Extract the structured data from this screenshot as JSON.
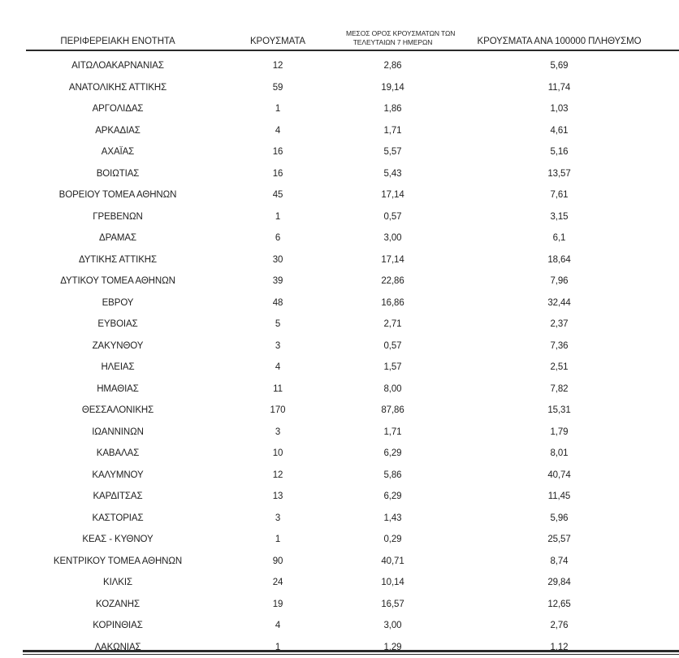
{
  "page": {
    "background": "#ffffff",
    "text_color": "#1f1f1f",
    "rule_color": "#2a2a2a"
  },
  "table": {
    "headers": {
      "region": "ΠΕΡΙΦΕΡΕΙΑΚΗ ΕΝΟΤΗΤΑ",
      "cases": "ΚΡΟΥΣΜΑΤΑ",
      "avg7_line1": "ΜΕΣΟΣ ΟΡΟΣ ΚΡΟΥΣΜΑΤΩΝ ΤΩΝ",
      "avg7_line2": "ΤΕΛΕΥΤΑΙΩΝ 7 ΗΜΕΡΩΝ",
      "per100k": "ΚΡΟΥΣΜΑΤΑ ΑΝΑ 100000 ΠΛΗΘΥΣΜΟ"
    },
    "rows": [
      {
        "region": "ΑΙΤΩΛΟΑΚΑΡΝΑΝΙΑΣ",
        "cases": "12",
        "avg7": "2,86",
        "per100k": "5,69"
      },
      {
        "region": "ΑΝΑΤΟΛΙΚΗΣ ΑΤΤΙΚΗΣ",
        "cases": "59",
        "avg7": "19,14",
        "per100k": "11,74"
      },
      {
        "region": "ΑΡΓΟΛΙΔΑΣ",
        "cases": "1",
        "avg7": "1,86",
        "per100k": "1,03"
      },
      {
        "region": "ΑΡΚΑΔΙΑΣ",
        "cases": "4",
        "avg7": "1,71",
        "per100k": "4,61"
      },
      {
        "region": "ΑΧΑΪΑΣ",
        "cases": "16",
        "avg7": "5,57",
        "per100k": "5,16"
      },
      {
        "region": "ΒΟΙΩΤΙΑΣ",
        "cases": "16",
        "avg7": "5,43",
        "per100k": "13,57"
      },
      {
        "region": "ΒΟΡΕΙΟΥ ΤΟΜΕΑ ΑΘΗΝΩΝ",
        "cases": "45",
        "avg7": "17,14",
        "per100k": "7,61"
      },
      {
        "region": "ΓΡΕΒΕΝΩΝ",
        "cases": "1",
        "avg7": "0,57",
        "per100k": "3,15"
      },
      {
        "region": "ΔΡΑΜΑΣ",
        "cases": "6",
        "avg7": "3,00",
        "per100k": "6,1"
      },
      {
        "region": "ΔΥΤΙΚΗΣ ΑΤΤΙΚΗΣ",
        "cases": "30",
        "avg7": "17,14",
        "per100k": "18,64"
      },
      {
        "region": "ΔΥΤΙΚΟΥ ΤΟΜΕΑ ΑΘΗΝΩΝ",
        "cases": "39",
        "avg7": "22,86",
        "per100k": "7,96"
      },
      {
        "region": "ΕΒΡΟΥ",
        "cases": "48",
        "avg7": "16,86",
        "per100k": "32,44"
      },
      {
        "region": "ΕΥΒΟΙΑΣ",
        "cases": "5",
        "avg7": "2,71",
        "per100k": "2,37"
      },
      {
        "region": "ΖΑΚΥΝΘΟΥ",
        "cases": "3",
        "avg7": "0,57",
        "per100k": "7,36"
      },
      {
        "region": "ΗΛΕΙΑΣ",
        "cases": "4",
        "avg7": "1,57",
        "per100k": "2,51"
      },
      {
        "region": "ΗΜΑΘΙΑΣ",
        "cases": "11",
        "avg7": "8,00",
        "per100k": "7,82"
      },
      {
        "region": "ΘΕΣΣΑΛΟΝΙΚΗΣ",
        "cases": "170",
        "avg7": "87,86",
        "per100k": "15,31"
      },
      {
        "region": "ΙΩΑΝΝΙΝΩΝ",
        "cases": "3",
        "avg7": "1,71",
        "per100k": "1,79"
      },
      {
        "region": "ΚΑΒΑΛΑΣ",
        "cases": "10",
        "avg7": "6,29",
        "per100k": "8,01"
      },
      {
        "region": "ΚΑΛΥΜΝΟΥ",
        "cases": "12",
        "avg7": "5,86",
        "per100k": "40,74"
      },
      {
        "region": "ΚΑΡΔΙΤΣΑΣ",
        "cases": "13",
        "avg7": "6,29",
        "per100k": "11,45"
      },
      {
        "region": "ΚΑΣΤΟΡΙΑΣ",
        "cases": "3",
        "avg7": "1,43",
        "per100k": "5,96"
      },
      {
        "region": "ΚΕΑΣ - ΚΥΘΝΟΥ",
        "cases": "1",
        "avg7": "0,29",
        "per100k": "25,57"
      },
      {
        "region": "ΚΕΝΤΡΙΚΟΥ ΤΟΜΕΑ ΑΘΗΝΩΝ",
        "cases": "90",
        "avg7": "40,71",
        "per100k": "8,74"
      },
      {
        "region": "ΚΙΛΚΙΣ",
        "cases": "24",
        "avg7": "10,14",
        "per100k": "29,84"
      },
      {
        "region": "ΚΟΖΑΝΗΣ",
        "cases": "19",
        "avg7": "16,57",
        "per100k": "12,65"
      },
      {
        "region": "ΚΟΡΙΝΘΙΑΣ",
        "cases": "4",
        "avg7": "3,00",
        "per100k": "2,76"
      },
      {
        "region": "ΛΑΚΩΝΙΑΣ",
        "cases": "1",
        "avg7": "1,29",
        "per100k": "1,12"
      }
    ]
  }
}
